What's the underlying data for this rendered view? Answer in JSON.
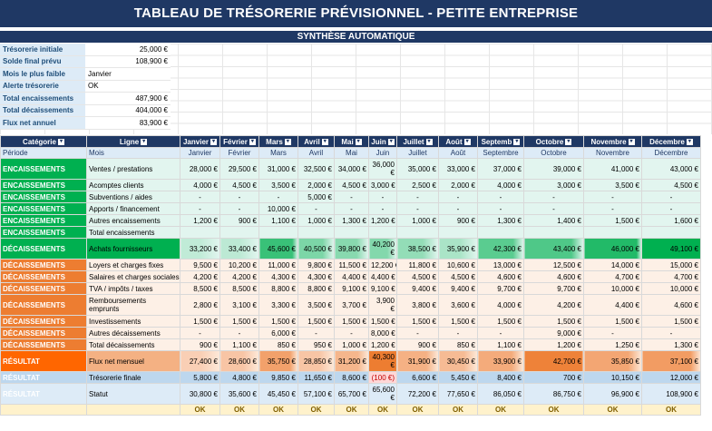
{
  "title": "TABLEAU DE TRÉSORERIE PRÉVISIONNEL - PETITE ENTREPRISE",
  "subtitle": "SYNTHÈSE AUTOMATIQUE",
  "summary": [
    {
      "label": "Trésorerie initiale",
      "value": "25,000 €",
      "align": "right"
    },
    {
      "label": "Solde final prévu",
      "value": "108,900 €",
      "align": "right"
    },
    {
      "label": "Mois le plus faible",
      "value": "Janvier",
      "align": "left"
    },
    {
      "label": "Alerte trésorerie",
      "value": "OK",
      "align": "left"
    },
    {
      "label": "Total encaissements",
      "value": "487,900 €",
      "align": "right"
    },
    {
      "label": "Total décaissements",
      "value": "404,000 €",
      "align": "right"
    },
    {
      "label": "Flux net annuel",
      "value": "83,900 €",
      "align": "right"
    }
  ],
  "headers": [
    "Catégorie",
    "Ligne",
    "Janvier",
    "Février",
    "Mars",
    "Avril",
    "Mai",
    "Juin",
    "Juillet",
    "Août",
    "Septemb",
    "Octobre",
    "Novembre",
    "Décembre"
  ],
  "period_row": [
    "Période",
    "Mois",
    "Janvier",
    "Février",
    "Mars",
    "Avril",
    "Mai",
    "Juin",
    "Juillet",
    "Août",
    "Septembre",
    "Octobre",
    "Novembre",
    "Décembre"
  ],
  "rows": [
    {
      "cat": "ENCAISSEMENTS",
      "kind": "enc",
      "line": "Ventes / prestations",
      "tall": true,
      "vals": [
        "28,000 €",
        "29,500 €",
        "31,000 €",
        "32,500 €",
        "34,000 €",
        "36,000 €",
        "35,000 €",
        "33,000 €",
        "37,000 €",
        "39,000 €",
        "41,000 €",
        "43,000 €"
      ]
    },
    {
      "cat": "ENCAISSEMENTS",
      "kind": "enc",
      "line": "Acomptes clients",
      "vals": [
        "4,000 €",
        "4,500 €",
        "3,500 €",
        "2,000 €",
        "4,500 €",
        "3,000 €",
        "2,500 €",
        "2,000 €",
        "4,000 €",
        "3,000 €",
        "3,500 €",
        "4,500 €"
      ]
    },
    {
      "cat": "ENCAISSEMENTS",
      "kind": "enc",
      "line": "Subventions / aides",
      "vals": [
        "-",
        "-",
        "-",
        "5,000 €",
        "-",
        "-",
        "-",
        "-",
        "-",
        "-",
        "-",
        "-"
      ]
    },
    {
      "cat": "ENCAISSEMENTS",
      "kind": "enc",
      "line": "Apports / financement",
      "vals": [
        "-",
        "-",
        "10,000 €",
        "-",
        "-",
        "-",
        "-",
        "-",
        "-",
        "-",
        "-",
        "-"
      ]
    },
    {
      "cat": "ENCAISSEMENTS",
      "kind": "enc",
      "line": "Autres encaissements",
      "vals": [
        "1,200 €",
        "900 €",
        "1,100 €",
        "1,000 €",
        "1,300 €",
        "1,200 €",
        "1,000 €",
        "900 €",
        "1,300 €",
        "1,400 €",
        "1,500 €",
        "1,600 €"
      ]
    },
    {
      "cat": "ENCAISSEMENTS",
      "kind": "enc",
      "line": "Total encaissements",
      "vals": [
        "",
        "",
        "",
        "",
        "",
        "",
        "",
        "",
        "",
        "",
        "",
        ""
      ]
    },
    {
      "cat": "DÉCAISSEMENTS",
      "kind": "heat",
      "line": "Achats fournisseurs",
      "tall": true,
      "vals": [
        "33,200 €",
        "33,400 €",
        "45,600 €",
        "40,500 €",
        "39,800 €",
        "40,200 €",
        "38,500 €",
        "35,900 €",
        "42,300 €",
        "43,400 €",
        "46,000 €",
        "49,100 €"
      ],
      "heat": [
        0.15,
        0.17,
        0.75,
        0.45,
        0.4,
        0.42,
        0.35,
        0.25,
        0.6,
        0.65,
        0.85,
        1.0
      ]
    },
    {
      "cat": "DÉCAISSEMENTS",
      "kind": "dec",
      "line": "Loyers et charges fixes",
      "vals": [
        "9,500 €",
        "10,200 €",
        "11,000 €",
        "9,800 €",
        "11,500 €",
        "12,200 €",
        "11,800 €",
        "10,600 €",
        "13,000 €",
        "12,500 €",
        "14,000 €",
        "15,000 €"
      ]
    },
    {
      "cat": "DÉCAISSEMENTS",
      "kind": "dec",
      "line": "Salaires et charges sociales",
      "vals": [
        "4,200 €",
        "4,200 €",
        "4,300 €",
        "4,300 €",
        "4,400 €",
        "4,400 €",
        "4,500 €",
        "4,500 €",
        "4,600 €",
        "4,600 €",
        "4,700 €",
        "4,700 €"
      ]
    },
    {
      "cat": "DÉCAISSEMENTS",
      "kind": "dec",
      "line": "TVA / impôts / taxes",
      "vals": [
        "8,500 €",
        "8,500 €",
        "8,800 €",
        "8,800 €",
        "9,100 €",
        "9,100 €",
        "9,400 €",
        "9,400 €",
        "9,700 €",
        "9,700 €",
        "10,000 €",
        "10,000 €"
      ]
    },
    {
      "cat": "DÉCAISSEMENTS",
      "kind": "dec",
      "line": "Remboursements emprunts",
      "tall": true,
      "vals": [
        "2,800 €",
        "3,100 €",
        "3,300 €",
        "3,500 €",
        "3,700 €",
        "3,900 €",
        "3,800 €",
        "3,600 €",
        "4,000 €",
        "4,200 €",
        "4,400 €",
        "4,600 €"
      ]
    },
    {
      "cat": "DÉCAISSEMENTS",
      "kind": "dec",
      "line": "Investissements",
      "vals": [
        "1,500 €",
        "1,500 €",
        "1,500 €",
        "1,500 €",
        "1,500 €",
        "1,500 €",
        "1,500 €",
        "1,500 €",
        "1,500 €",
        "1,500 €",
        "1,500 €",
        "1,500 €"
      ]
    },
    {
      "cat": "DÉCAISSEMENTS",
      "kind": "dec",
      "line": "Autres décaissements",
      "vals": [
        "-",
        "-",
        "6,000 €",
        "-",
        "-",
        "8,000 €",
        "-",
        "-",
        "-",
        "9,000 €",
        "-",
        "-"
      ]
    },
    {
      "cat": "DÉCAISSEMENTS",
      "kind": "dec",
      "line": "Total décaissements",
      "vals": [
        "900 €",
        "1,100 €",
        "850 €",
        "950 €",
        "1,000 €",
        "1,200 €",
        "900 €",
        "850 €",
        "1,100 €",
        "1,200 €",
        "1,250 €",
        "1,300 €"
      ]
    },
    {
      "cat": "RÉSULTAT",
      "kind": "flux",
      "line": "Flux net mensuel",
      "tall": true,
      "vals": [
        "27,400 €",
        "28,600 €",
        "35,750 €",
        "28,850 €",
        "31,200 €",
        "40,300 €",
        "31,900 €",
        "30,450 €",
        "33,900 €",
        "42,700 €",
        "35,850 €",
        "37,100 €"
      ],
      "heat": [
        0.2,
        0.3,
        0.65,
        0.3,
        0.45,
        1.0,
        0.5,
        0.4,
        0.55,
        0.95,
        0.6,
        0.7
      ]
    },
    {
      "cat": "RÉSULTAT",
      "kind": "tres",
      "line": "Trésorerie finale",
      "vals": [
        "5,800 €",
        "4,800 €",
        "9,850 €",
        "11,650 €",
        "8,600 €",
        "(100 €)",
        "6,600 €",
        "5,450 €",
        "8,400 €",
        "700 €",
        "10,150 €",
        "12,000 €"
      ]
    },
    {
      "cat": "RÉSULTAT",
      "kind": "stat",
      "line": "Statut",
      "tall": true,
      "vals": [
        "30,800 €",
        "35,600 €",
        "45,450 €",
        "57,100 €",
        "65,700 €",
        "65,600 €",
        "72,200 €",
        "77,650 €",
        "86,050 €",
        "86,750 €",
        "96,900 €",
        "108,900 €"
      ]
    }
  ],
  "ok_row": [
    "",
    "",
    "OK",
    "OK",
    "OK",
    "OK",
    "OK",
    "OK",
    "OK",
    "OK",
    "OK",
    "OK",
    "OK",
    "OK"
  ],
  "colors": {
    "navy": "#1f3864",
    "green": "#00b050",
    "orange": "#ed7d31",
    "result": "#ff6600",
    "blue": "#2e75b6"
  }
}
